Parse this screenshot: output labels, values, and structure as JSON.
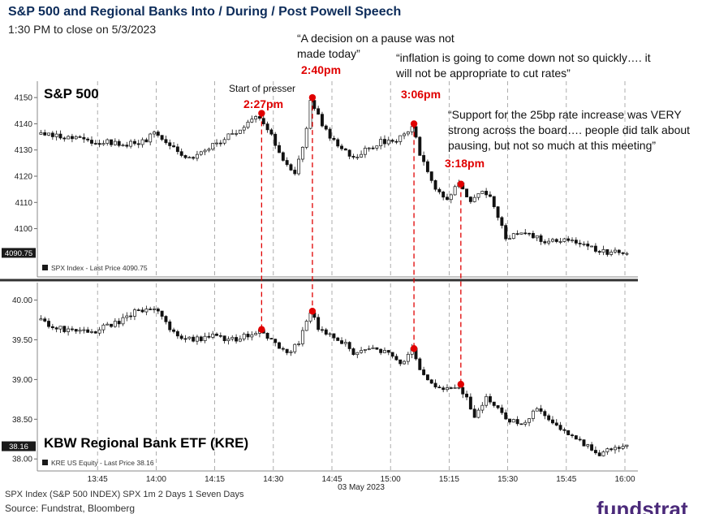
{
  "header": {
    "title": "S&P 500 and Regional Banks Into / During / Post Powell Speech",
    "subtitle": "1:30 PM to close on 5/3/2023"
  },
  "annotations": {
    "q1_line1": "“A decision on a pause was not",
    "q1_line2": "made today”",
    "q2_line1": "“inflation is going to come down not so quickly…. it",
    "q2_line2": "will not be appropriate to cut rates”",
    "q3_line1": "“Support for the 25bp rate increase was VERY",
    "q3_line2": "strong across the board…. people did talk about",
    "q3_line3": "pausing, but not so much at this meeting”",
    "start_of_presser": "Start of presser",
    "t1": "2:27pm",
    "t2": "2:40pm",
    "t3": "3:06pm",
    "t4": "3:18pm"
  },
  "footer": {
    "line1": "SPX Index (S&P 500 INDEX) SPX 1m 2 Days 1 Seven Days",
    "line2": "Source: Fundstrat, Bloomberg",
    "logo": "fundstrat"
  },
  "colors": {
    "title": "#0d2c5a",
    "highlight": "#e00000",
    "candle": "#111111",
    "grid": "#9a9a9a",
    "divider": "#333333",
    "logo": "#4b2a7a"
  },
  "chart_data": [
    {
      "type": "candlestick",
      "title": "S&P 500",
      "legend": "SPX Index - Last Price 4090.75",
      "last_price_label": "4090.75",
      "y_ticks": [
        "4150",
        "4140",
        "4130",
        "4120",
        "4110",
        "4100"
      ],
      "ylim": [
        4085,
        4155
      ],
      "interval_minutes": 1,
      "grid": "vertical dashed",
      "anchors": [
        {
          "t": "13:30",
          "v": 4136
        },
        {
          "t": "13:35",
          "v": 4135
        },
        {
          "t": "13:40",
          "v": 4134
        },
        {
          "t": "13:45",
          "v": 4133
        },
        {
          "t": "13:50",
          "v": 4133
        },
        {
          "t": "13:55",
          "v": 4132
        },
        {
          "t": "13:58",
          "v": 4134
        },
        {
          "t": "14:00",
          "v": 4137
        },
        {
          "t": "14:02",
          "v": 4134
        },
        {
          "t": "14:05",
          "v": 4131
        },
        {
          "t": "14:08",
          "v": 4128
        },
        {
          "t": "14:10",
          "v": 4127
        },
        {
          "t": "14:15",
          "v": 4132
        },
        {
          "t": "14:20",
          "v": 4136
        },
        {
          "t": "14:24",
          "v": 4140
        },
        {
          "t": "14:27",
          "v": 4143
        },
        {
          "t": "14:30",
          "v": 4135
        },
        {
          "t": "14:33",
          "v": 4125
        },
        {
          "t": "14:36",
          "v": 4120
        },
        {
          "t": "14:39",
          "v": 4138
        },
        {
          "t": "14:40",
          "v": 4149
        },
        {
          "t": "14:42",
          "v": 4143
        },
        {
          "t": "14:45",
          "v": 4134
        },
        {
          "t": "14:48",
          "v": 4131
        },
        {
          "t": "14:51",
          "v": 4127
        },
        {
          "t": "14:54",
          "v": 4130
        },
        {
          "t": "14:58",
          "v": 4133
        },
        {
          "t": "15:02",
          "v": 4134
        },
        {
          "t": "15:05",
          "v": 4138
        },
        {
          "t": "15:06",
          "v": 4140
        },
        {
          "t": "15:08",
          "v": 4128
        },
        {
          "t": "15:12",
          "v": 4114
        },
        {
          "t": "15:15",
          "v": 4111
        },
        {
          "t": "15:18",
          "v": 4117
        },
        {
          "t": "15:21",
          "v": 4110
        },
        {
          "t": "15:24",
          "v": 4114
        },
        {
          "t": "15:26",
          "v": 4113
        },
        {
          "t": "15:28",
          "v": 4104
        },
        {
          "t": "15:30",
          "v": 4097
        },
        {
          "t": "15:35",
          "v": 4098
        },
        {
          "t": "15:40",
          "v": 4095
        },
        {
          "t": "15:45",
          "v": 4096
        },
        {
          "t": "15:50",
          "v": 4094
        },
        {
          "t": "15:55",
          "v": 4091
        },
        {
          "t": "16:00",
          "v": 4090.75
        }
      ],
      "markers": [
        {
          "t": "14:27",
          "v": 4144,
          "label": "2:27pm"
        },
        {
          "t": "14:40",
          "v": 4150,
          "label": "2:40pm"
        },
        {
          "t": "15:06",
          "v": 4140,
          "label": "3:06pm"
        },
        {
          "t": "15:18",
          "v": 4117,
          "label": "3:18pm"
        }
      ]
    },
    {
      "type": "candlestick",
      "title": "KBW Regional Bank ETF (KRE)",
      "legend": "KRE US Equity - Last Price 38.16",
      "last_price_label": "38.16",
      "y_ticks": [
        "40.00",
        "39.50",
        "39.00",
        "38.50",
        "38.00"
      ],
      "ylim": [
        37.9,
        40.2
      ],
      "interval_minutes": 1,
      "grid": "vertical dashed",
      "anchors": [
        {
          "t": "13:30",
          "v": 39.75
        },
        {
          "t": "13:35",
          "v": 39.65
        },
        {
          "t": "13:40",
          "v": 39.6
        },
        {
          "t": "13:45",
          "v": 39.62
        },
        {
          "t": "13:50",
          "v": 39.7
        },
        {
          "t": "13:55",
          "v": 39.85
        },
        {
          "t": "14:00",
          "v": 39.9
        },
        {
          "t": "14:03",
          "v": 39.7
        },
        {
          "t": "14:06",
          "v": 39.55
        },
        {
          "t": "14:10",
          "v": 39.5
        },
        {
          "t": "14:15",
          "v": 39.55
        },
        {
          "t": "14:20",
          "v": 39.5
        },
        {
          "t": "14:27",
          "v": 39.62
        },
        {
          "t": "14:30",
          "v": 39.5
        },
        {
          "t": "14:34",
          "v": 39.35
        },
        {
          "t": "14:37",
          "v": 39.45
        },
        {
          "t": "14:40",
          "v": 39.85
        },
        {
          "t": "14:42",
          "v": 39.65
        },
        {
          "t": "14:45",
          "v": 39.55
        },
        {
          "t": "14:48",
          "v": 39.48
        },
        {
          "t": "14:51",
          "v": 39.35
        },
        {
          "t": "14:55",
          "v": 39.4
        },
        {
          "t": "15:00",
          "v": 39.35
        },
        {
          "t": "15:03",
          "v": 39.2
        },
        {
          "t": "15:06",
          "v": 39.38
        },
        {
          "t": "15:08",
          "v": 39.15
        },
        {
          "t": "15:11",
          "v": 38.95
        },
        {
          "t": "15:14",
          "v": 38.85
        },
        {
          "t": "15:18",
          "v": 38.9
        },
        {
          "t": "15:20",
          "v": 38.75
        },
        {
          "t": "15:22",
          "v": 38.55
        },
        {
          "t": "15:25",
          "v": 38.75
        },
        {
          "t": "15:28",
          "v": 38.65
        },
        {
          "t": "15:30",
          "v": 38.5
        },
        {
          "t": "15:35",
          "v": 38.45
        },
        {
          "t": "15:37",
          "v": 38.62
        },
        {
          "t": "15:40",
          "v": 38.55
        },
        {
          "t": "15:43",
          "v": 38.4
        },
        {
          "t": "15:47",
          "v": 38.3
        },
        {
          "t": "15:50",
          "v": 38.2
        },
        {
          "t": "15:53",
          "v": 38.05
        },
        {
          "t": "15:56",
          "v": 38.1
        },
        {
          "t": "16:00",
          "v": 38.16
        }
      ],
      "markers": [
        {
          "t": "14:27",
          "v": 39.63
        },
        {
          "t": "14:40",
          "v": 39.86
        },
        {
          "t": "15:06",
          "v": 39.39
        },
        {
          "t": "15:18",
          "v": 38.94
        }
      ]
    }
  ],
  "x_axis": {
    "ticks": [
      "13:45",
      "14:00",
      "14:15",
      "14:30",
      "14:45",
      "15:00",
      "15:15",
      "15:30",
      "15:45",
      "16:00"
    ],
    "date_label": "03 May 2023",
    "range": [
      "13:30",
      "16:00"
    ]
  }
}
